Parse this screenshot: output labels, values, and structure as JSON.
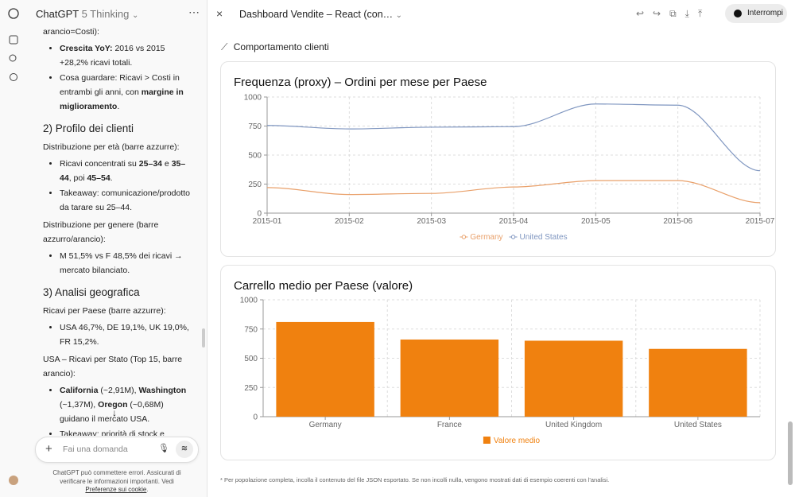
{
  "chat": {
    "app": "ChatGPT",
    "model": "5 Thinking",
    "intro": {
      "label": "arancio=Costi):",
      "bullets": [
        [
          {
            "text": "Crescita YoY:",
            "bold": true
          },
          "2016 vs 2015 +28,2% ricavi totali."
        ],
        [
          "Cosa guardare: Ricavi > Costi in entrambi gli anni, con",
          {
            "text": "margine in miglioramento",
            "bold": true
          },
          "."
        ]
      ]
    },
    "sections": [
      {
        "heading": "2) Profilo dei clienti",
        "groups": [
          {
            "label": "Distribuzione per età (barre azzurre):",
            "bullets": [
              [
                "Ricavi concentrati su",
                {
                  "text": "25–34",
                  "bold": true
                },
                "e",
                {
                  "text": "35–44",
                  "bold": true
                },
                ", poi",
                {
                  "text": "45–54",
                  "bold": true
                },
                "."
              ],
              [
                "Takeaway: comunicazione/prodotto da tarare su 25–44."
              ]
            ]
          },
          {
            "label": "Distribuzione per genere (barre azzurro/arancio):",
            "bullets": [
              [
                "M 51,5% vs F 48,5% dei ricavi → mercato bilanciato."
              ]
            ]
          }
        ]
      },
      {
        "heading": "3) Analisi geografica",
        "groups": [
          {
            "label": "Ricavi per Paese (barre azzurre):",
            "bullets": [
              [
                "USA 46,7%, DE 19,1%, UK 19,0%, FR 15,2%."
              ]
            ]
          },
          {
            "label": "USA – Ricavi per Stato (Top 15, barre arancio):",
            "bullets": [
              [
                {
                  "text": "California",
                  "bold": true
                },
                "(~2,91M),",
                {
                  "text": "Washington",
                  "bold": true
                },
                "(~1,37M),",
                {
                  "text": "Oregon",
                  "bold": true
                },
                "(~0,68M) guidano il mercato USA."
              ],
              [
                "Takeaway: priorità di stock e"
              ]
            ]
          }
        ]
      }
    ],
    "input_placeholder": "Fai una domanda",
    "footer": [
      "ChatGPT può commettere errori. Assicurati di verificare le informazioni importanti. Vedi",
      {
        "text": "Preferenze sui cookie",
        "link": true
      },
      "."
    ]
  },
  "panel": {
    "title": "Dashboard Vendite – React (con…",
    "stop": "Interrompi",
    "section": "Comportamento clienti",
    "footnote": "* Per popolazione completa, incolla il contenuto del file JSON esportato. Se non incolli nulla, vengono mostrati dati di esempio coerenti con l'analisi."
  },
  "chart_data": [
    {
      "type": "line",
      "title": "Frequenza (proxy) – Ordini per mese per Paese",
      "categories": [
        "2015-01",
        "2015-02",
        "2015-03",
        "2015-04",
        "2015-05",
        "2015-06",
        "2015-07"
      ],
      "series": [
        {
          "name": "Germany",
          "color": "#e9a06a",
          "values": [
            220,
            160,
            170,
            225,
            280,
            280,
            90
          ]
        },
        {
          "name": "United States",
          "color": "#7f96c0",
          "values": [
            755,
            725,
            740,
            745,
            940,
            930,
            365
          ]
        }
      ],
      "ylim": [
        0,
        1000
      ],
      "yticks": [
        0,
        250,
        500,
        750,
        1000
      ],
      "grid": true,
      "legend": "bottom"
    },
    {
      "type": "bar",
      "title": "Carrello medio per Paese (valore)",
      "categories": [
        "Germany",
        "France",
        "United Kingdom",
        "United States"
      ],
      "series": [
        {
          "name": "Valore medio",
          "color": "#f0810f",
          "values": [
            810,
            660,
            650,
            580
          ]
        }
      ],
      "ylim": [
        0,
        1000
      ],
      "yticks": [
        0,
        250,
        500,
        750,
        1000
      ],
      "grid": true,
      "legend": "bottom"
    }
  ]
}
